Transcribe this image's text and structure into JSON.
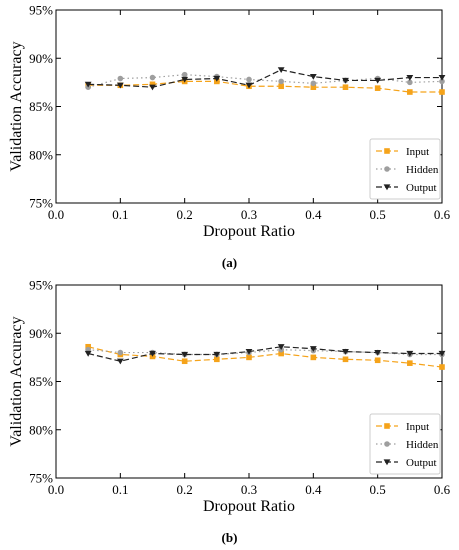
{
  "chart_data": [
    {
      "type": "line",
      "caption_letter": "(a)",
      "xlabel": "Dropout Ratio",
      "ylabel": "Validation Accuracy",
      "xlim": [
        0.0,
        0.6
      ],
      "ylim": [
        75,
        95
      ],
      "xticks": [
        "0.0",
        "0.1",
        "0.2",
        "0.3",
        "0.4",
        "0.5",
        "0.6"
      ],
      "yticks": [
        "75%",
        "80%",
        "85%",
        "90%",
        "95%"
      ],
      "legend_position": "bottom-right",
      "x": [
        0.05,
        0.1,
        0.15,
        0.2,
        0.25,
        0.3,
        0.35,
        0.4,
        0.45,
        0.5,
        0.55,
        0.6
      ],
      "series": [
        {
          "name": "Input",
          "color": "#f5a31a",
          "marker": "square",
          "dash": "6,3",
          "values": [
            87.2,
            87.2,
            87.3,
            87.6,
            87.6,
            87.1,
            87.1,
            87.0,
            87.0,
            86.9,
            86.5,
            86.5
          ]
        },
        {
          "name": "Hidden",
          "color": "#9e9e9e",
          "marker": "circle",
          "dash": "1.5,3",
          "values": [
            87.0,
            87.9,
            88.0,
            88.3,
            88.1,
            87.8,
            87.6,
            87.4,
            87.7,
            87.9,
            87.5,
            87.6
          ]
        },
        {
          "name": "Output",
          "color": "#222222",
          "marker": "triangle-down",
          "dash": "6,3",
          "values": [
            87.3,
            87.2,
            87.0,
            87.8,
            87.9,
            87.2,
            88.8,
            88.1,
            87.7,
            87.7,
            88.0,
            88.0
          ]
        }
      ]
    },
    {
      "type": "line",
      "caption_letter": "(b)",
      "xlabel": "Dropout Ratio",
      "ylabel": "Validation Accuracy",
      "xlim": [
        0.0,
        0.6
      ],
      "ylim": [
        75,
        95
      ],
      "xticks": [
        "0.0",
        "0.1",
        "0.2",
        "0.3",
        "0.4",
        "0.5",
        "0.6"
      ],
      "yticks": [
        "75%",
        "80%",
        "85%",
        "90%",
        "95%"
      ],
      "legend_position": "bottom-right",
      "x": [
        0.05,
        0.1,
        0.15,
        0.2,
        0.25,
        0.3,
        0.35,
        0.4,
        0.45,
        0.5,
        0.55,
        0.6
      ],
      "series": [
        {
          "name": "Input",
          "color": "#f5a31a",
          "marker": "square",
          "dash": "6,3",
          "values": [
            88.6,
            87.8,
            87.6,
            87.1,
            87.3,
            87.5,
            87.9,
            87.5,
            87.3,
            87.2,
            86.9,
            86.5
          ]
        },
        {
          "name": "Hidden",
          "color": "#9e9e9e",
          "marker": "circle",
          "dash": "1.5,3",
          "values": [
            88.3,
            88.0,
            88.0,
            87.8,
            87.8,
            88.0,
            88.3,
            88.2,
            88.1,
            88.0,
            87.8,
            87.8
          ]
        },
        {
          "name": "Output",
          "color": "#222222",
          "marker": "triangle-down",
          "dash": "6,3",
          "values": [
            87.9,
            87.1,
            87.9,
            87.8,
            87.8,
            88.1,
            88.6,
            88.4,
            88.1,
            88.0,
            87.9,
            87.9
          ]
        }
      ]
    }
  ]
}
